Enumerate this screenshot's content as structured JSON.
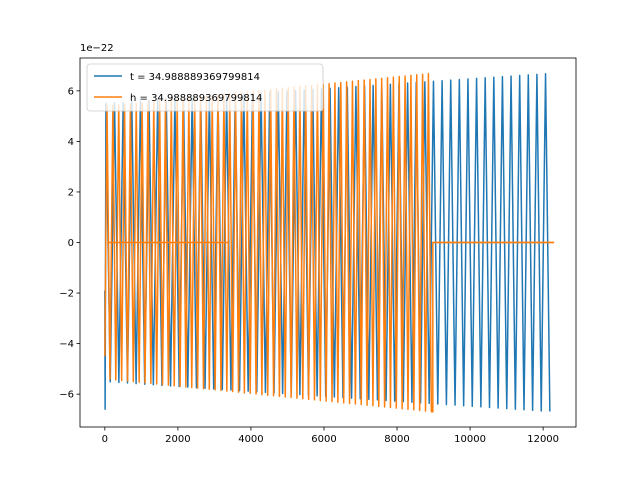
{
  "chart_data": {
    "type": "line",
    "title": "",
    "xlabel": "",
    "ylabel": "",
    "offset_text": "1e−22",
    "xlim": [
      -680,
      12900
    ],
    "ylim": [
      -7.3,
      7.3
    ],
    "xticks": [
      0,
      2000,
      4000,
      6000,
      8000,
      10000,
      12000
    ],
    "yticks": [
      -6,
      -4,
      -2,
      0,
      2,
      4,
      6
    ],
    "xtick_labels": [
      "0",
      "2000",
      "4000",
      "6000",
      "8000",
      "10000",
      "12000"
    ],
    "ytick_labels": [
      "−6",
      "−4",
      "−2",
      "0",
      "2",
      "4",
      "6"
    ],
    "grid": false,
    "legend_position": "upper-left",
    "series": [
      {
        "name": "t = 34.988889369799814",
        "color": "#1f77b4",
        "x_start": 0,
        "x_end": 12300,
        "amplitude_start": 5.5,
        "amplitude_end": 6.7,
        "oscillation_period": 236,
        "initial_value": -1.9,
        "initial_min": -6.6
      },
      {
        "name": "h = 34.988889369799814",
        "color": "#ff7f0e",
        "x_start": 0,
        "x_end": 12300,
        "active_x_range": [
          60,
          8980
        ],
        "flat_segments": [
          {
            "x_range": [
              60,
              3380
            ],
            "value": 0
          },
          {
            "x_range": [
              8980,
              12300
            ],
            "value": 0
          }
        ],
        "amplitude_start": 5.4,
        "amplitude_end": 6.7,
        "oscillation_period": 160,
        "initial_value": -4.5
      }
    ]
  }
}
